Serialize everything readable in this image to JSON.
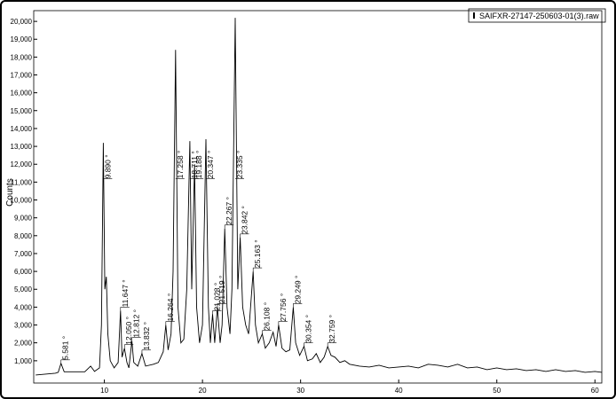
{
  "chart_data": {
    "type": "line",
    "y_label": "Counts",
    "legend": "SAIFXR-27147-250603-01(3).raw",
    "color": "#000000",
    "x": [
      3.0,
      4,
      5,
      5.3,
      5.58,
      5.9,
      7,
      8,
      8.6,
      9.0,
      9.5,
      9.7,
      9.89,
      10.05,
      10.2,
      10.35,
      10.6,
      11.0,
      11.4,
      11.65,
      11.8,
      12.05,
      12.3,
      12.5,
      12.81,
      13.0,
      13.4,
      13.83,
      14.2,
      15.0,
      15.5,
      16.0,
      16.26,
      16.5,
      16.8,
      17.0,
      17.26,
      17.5,
      17.8,
      18.1,
      18.4,
      18.71,
      18.9,
      19.19,
      19.4,
      19.7,
      20.0,
      20.35,
      20.6,
      20.8,
      21.03,
      21.25,
      21.52,
      21.8,
      22.0,
      22.27,
      22.5,
      22.8,
      23.0,
      23.34,
      23.6,
      23.84,
      24.1,
      24.4,
      24.7,
      25.16,
      25.4,
      25.7,
      26.1,
      26.4,
      26.8,
      27.2,
      27.5,
      27.76,
      28.1,
      28.5,
      28.9,
      29.25,
      29.5,
      29.9,
      30.35,
      30.7,
      31.2,
      31.6,
      32.0,
      32.4,
      32.76,
      33.1,
      33.5,
      34,
      34.5,
      35,
      36,
      37,
      38,
      39,
      40,
      41,
      42,
      43,
      44,
      45,
      46,
      47,
      48,
      49,
      50,
      51,
      52,
      53,
      54,
      55,
      56,
      57,
      58,
      59,
      60,
      60.7
    ],
    "values": [
      200,
      250,
      300,
      350,
      850,
      380,
      380,
      380,
      700,
      400,
      600,
      3000,
      13200,
      5000,
      5700,
      2500,
      1000,
      600,
      900,
      3800,
      1200,
      1700,
      900,
      600,
      2100,
      900,
      700,
      1400,
      700,
      800,
      900,
      1500,
      3000,
      1600,
      2500,
      6000,
      18400,
      4000,
      2000,
      2200,
      5000,
      13300,
      5000,
      12000,
      4000,
      2000,
      3000,
      13400,
      4000,
      2000,
      3600,
      2000,
      4000,
      2000,
      3000,
      8400,
      4000,
      2500,
      5000,
      20200,
      5000,
      7900,
      4000,
      3000,
      2500,
      6000,
      3000,
      2000,
      2500,
      1700,
      2000,
      2600,
      1800,
      3000,
      1700,
      1500,
      1600,
      4000,
      2000,
      1300,
      1800,
      1000,
      1100,
      1400,
      900,
      1200,
      1800,
      1300,
      1200,
      900,
      1000,
      800,
      700,
      650,
      750,
      600,
      650,
      700,
      600,
      800,
      750,
      650,
      800,
      600,
      650,
      500,
      600,
      500,
      550,
      450,
      500,
      400,
      500,
      400,
      450,
      350,
      400,
      350
    ],
    "peaks": [
      {
        "x": 5.581,
        "label": "5.581 °"
      },
      {
        "x": 9.89,
        "label": "9.890 °"
      },
      {
        "x": 11.647,
        "label": "11.647 °"
      },
      {
        "x": 12.05,
        "label": "12.050 °"
      },
      {
        "x": 12.812,
        "label": "12.812 °"
      },
      {
        "x": 13.832,
        "label": "13.832 °"
      },
      {
        "x": 16.264,
        "label": "16.264 °"
      },
      {
        "x": 17.258,
        "label": "17.258 °"
      },
      {
        "x": 18.711,
        "label": "18.711 °"
      },
      {
        "x": 19.188,
        "label": "19.188 °"
      },
      {
        "x": 20.347,
        "label": "20.347 °"
      },
      {
        "x": 21.028,
        "label": "21.028 °"
      },
      {
        "x": 21.519,
        "label": "21.519 °"
      },
      {
        "x": 22.267,
        "label": "22.267 °"
      },
      {
        "x": 23.335,
        "label": "23.335 °"
      },
      {
        "x": 23.842,
        "label": "23.842 °"
      },
      {
        "x": 25.163,
        "label": "25.163 °"
      },
      {
        "x": 26.108,
        "label": "26.108 °"
      },
      {
        "x": 27.756,
        "label": "27.756 °"
      },
      {
        "x": 29.249,
        "label": "29.249 °"
      },
      {
        "x": 30.354,
        "label": "30.354 °"
      },
      {
        "x": 32.759,
        "label": "32.759 °"
      }
    ],
    "xlim": [
      2.8,
      60.7
    ],
    "ylim": [
      -250,
      20600
    ],
    "xticks": [
      10,
      20,
      30,
      40,
      50,
      60
    ],
    "yticks": [
      {
        "value": 1000,
        "label": "1,000"
      },
      {
        "value": 2000,
        "label": "2,000"
      },
      {
        "value": 3000,
        "label": "3,000"
      },
      {
        "value": 4000,
        "label": "4,000"
      },
      {
        "value": 5000,
        "label": "5,000"
      },
      {
        "value": 6000,
        "label": "6,000"
      },
      {
        "value": 7000,
        "label": "7,000"
      },
      {
        "value": 8000,
        "label": "8,000"
      },
      {
        "value": 9000,
        "label": "9,000"
      },
      {
        "value": 10000,
        "label": "10,000"
      },
      {
        "value": 11000,
        "label": "11,000"
      },
      {
        "value": 12000,
        "label": "12,000"
      },
      {
        "value": 13000,
        "label": "13,000"
      },
      {
        "value": 14000,
        "label": "14,000"
      },
      {
        "value": 15000,
        "label": "15,000"
      },
      {
        "value": 16000,
        "label": "16,000"
      },
      {
        "value": 17000,
        "label": "17,000"
      },
      {
        "value": 18000,
        "label": "18,000"
      },
      {
        "value": 19000,
        "label": "19,000"
      },
      {
        "value": 20000,
        "label": "20,000"
      }
    ]
  }
}
